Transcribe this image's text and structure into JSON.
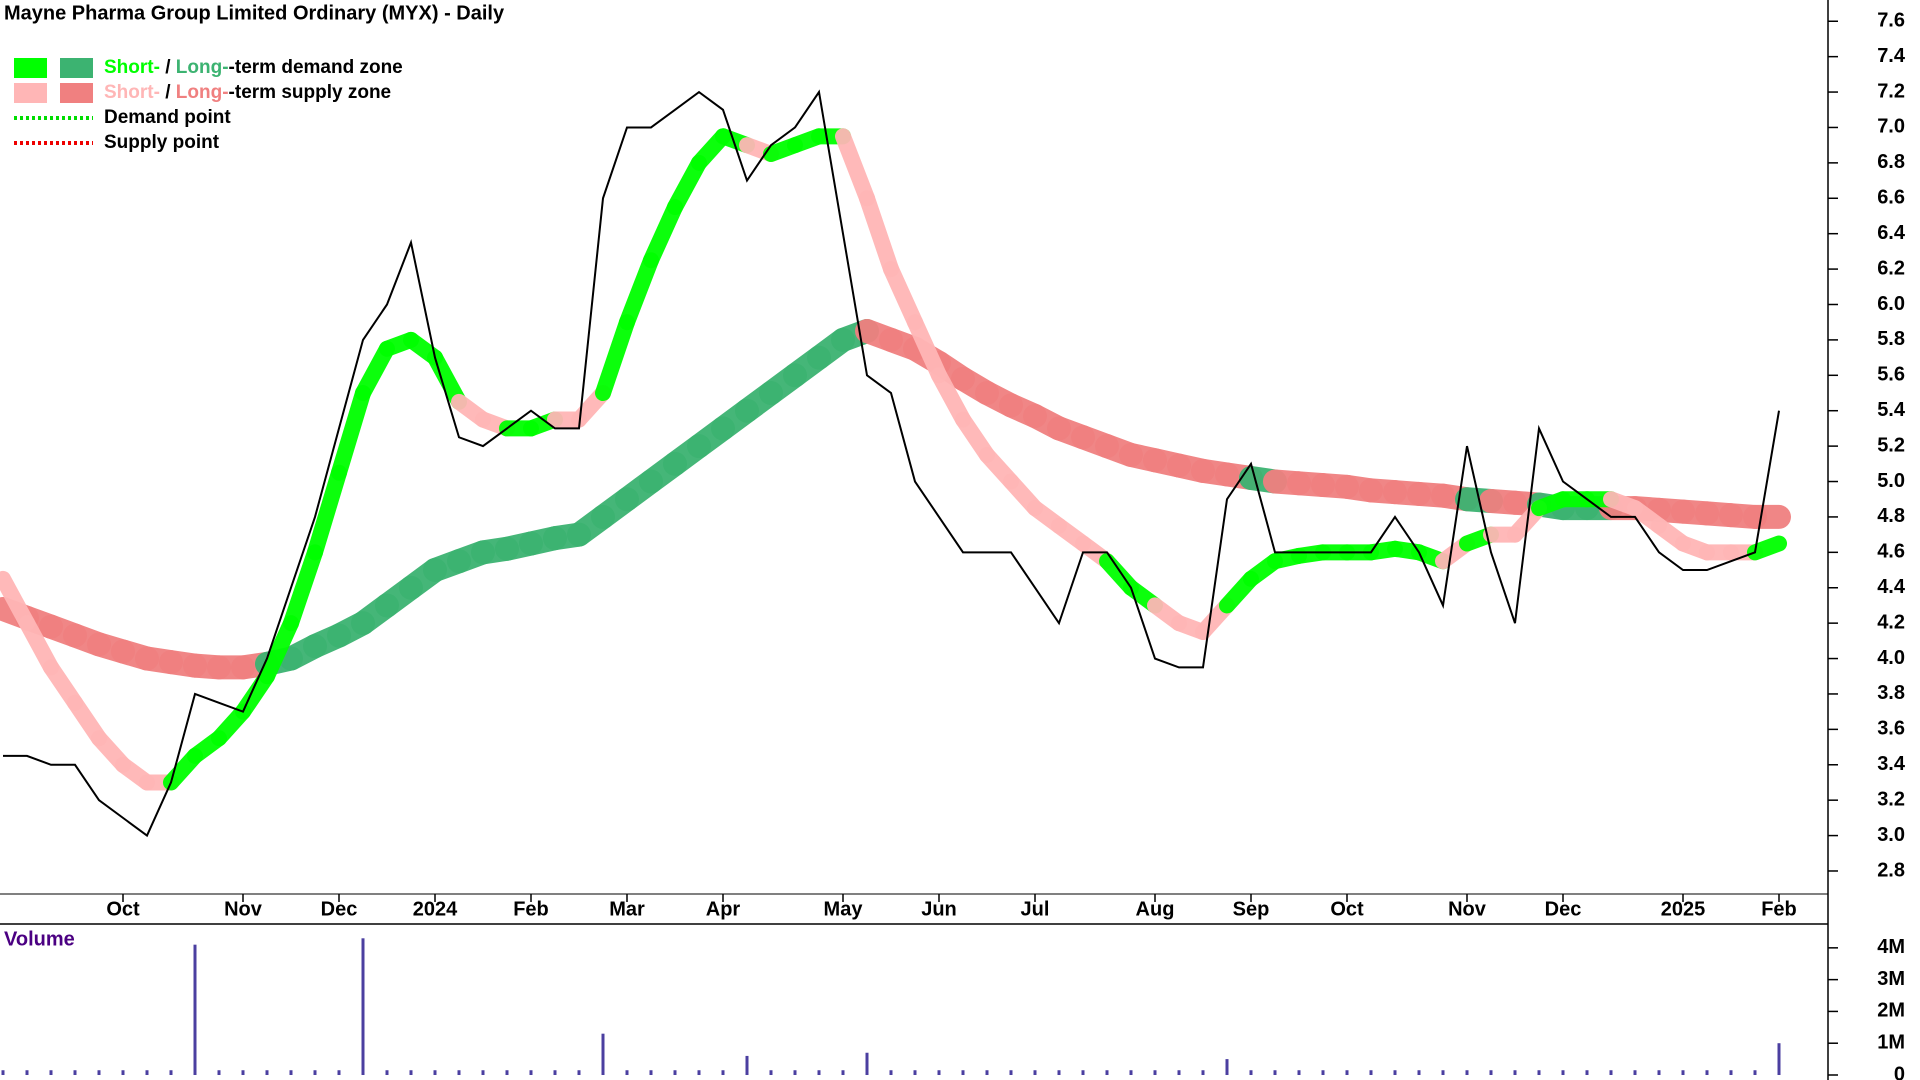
{
  "chart_data": [
    {
      "type": "line",
      "title": "Mayne Pharma Group Limited Ordinary (MYX) - Daily",
      "legend": {
        "corner": "top-left",
        "items": [
          {
            "short": "Short-",
            "sep": " / ",
            "long": "Long-",
            "rest": "-term demand zone",
            "short_color": "#00ff00",
            "long_color": "#3cb371"
          },
          {
            "short": "Short-",
            "sep": " / ",
            "long": "Long-",
            "rest": "-term supply zone",
            "short_color": "#ffb6b6",
            "long_color": "#f08080"
          },
          {
            "rest": "Demand point",
            "line_color": "#00dd00"
          },
          {
            "rest": "Supply point",
            "line_color": "#ee0000"
          }
        ]
      },
      "categories": [
        null,
        null,
        null,
        null,
        null,
        "Oct",
        null,
        null,
        null,
        null,
        "Nov",
        null,
        null,
        null,
        "Dec",
        null,
        null,
        null,
        "2024",
        null,
        null,
        null,
        "Feb",
        null,
        null,
        null,
        "Mar",
        null,
        null,
        null,
        "Apr",
        null,
        null,
        null,
        null,
        "May",
        null,
        null,
        null,
        "Jun",
        null,
        null,
        null,
        "Jul",
        null,
        null,
        null,
        null,
        "Aug",
        null,
        null,
        null,
        "Sep",
        null,
        null,
        null,
        "Oct",
        null,
        null,
        null,
        null,
        "Nov",
        null,
        null,
        null,
        "Dec",
        null,
        null,
        null,
        null,
        "2025",
        null,
        null,
        null,
        "Feb"
      ],
      "series": [
        {
          "role": "price",
          "color": "#000000",
          "values": [
            3.45,
            3.45,
            3.4,
            3.4,
            3.2,
            3.1,
            3.0,
            3.3,
            3.8,
            3.75,
            3.7,
            4.0,
            4.4,
            4.8,
            5.3,
            5.8,
            6.0,
            6.35,
            5.7,
            5.25,
            5.2,
            5.3,
            5.4,
            5.3,
            5.3,
            6.6,
            7.0,
            7.0,
            7.1,
            7.2,
            7.1,
            6.7,
            6.9,
            7.0,
            7.2,
            6.4,
            5.6,
            5.5,
            5.0,
            4.8,
            4.6,
            4.6,
            4.6,
            4.4,
            4.2,
            4.6,
            4.6,
            4.4,
            4.0,
            3.95,
            3.95,
            4.9,
            5.1,
            4.6,
            4.6,
            4.6,
            4.6,
            4.6,
            4.8,
            4.6,
            4.3,
            5.2,
            4.6,
            4.2,
            5.3,
            5.0,
            4.9,
            4.8,
            4.8,
            4.6,
            4.5,
            4.5,
            4.55,
            4.6,
            5.4
          ]
        },
        {
          "role": "short-zone",
          "demand_color": "#00ff00",
          "supply_color": "#ffb6b6",
          "values": [
            4.45,
            4.2,
            3.95,
            3.75,
            3.55,
            3.4,
            3.3,
            3.3,
            3.45,
            3.55,
            3.7,
            3.9,
            4.2,
            4.6,
            5.05,
            5.5,
            5.75,
            5.8,
            5.7,
            5.45,
            5.35,
            5.3,
            5.3,
            5.35,
            5.35,
            5.5,
            5.9,
            6.25,
            6.55,
            6.8,
            6.95,
            6.9,
            6.85,
            6.9,
            6.95,
            6.95,
            6.6,
            6.2,
            5.9,
            5.6,
            5.35,
            5.15,
            5.0,
            4.85,
            4.75,
            4.65,
            4.55,
            4.4,
            4.3,
            4.2,
            4.15,
            4.3,
            4.45,
            4.55,
            4.58,
            4.6,
            4.6,
            4.6,
            4.62,
            4.6,
            4.55,
            4.65,
            4.7,
            4.7,
            4.85,
            4.9,
            4.9,
            4.9,
            4.85,
            4.75,
            4.65,
            4.6,
            4.6,
            4.6,
            4.65
          ]
        },
        {
          "role": "long-zone",
          "demand_color": "#3cb371",
          "supply_color": "#f08080",
          "values": [
            4.28,
            4.23,
            4.18,
            4.13,
            4.08,
            4.04,
            4.0,
            3.98,
            3.96,
            3.95,
            3.95,
            3.97,
            4.0,
            4.07,
            4.13,
            4.2,
            4.3,
            4.4,
            4.5,
            4.55,
            4.6,
            4.62,
            4.65,
            4.68,
            4.7,
            4.8,
            4.9,
            5.0,
            5.1,
            5.2,
            5.3,
            5.4,
            5.5,
            5.6,
            5.7,
            5.8,
            5.85,
            5.8,
            5.75,
            5.67,
            5.58,
            5.5,
            5.43,
            5.37,
            5.3,
            5.25,
            5.2,
            5.15,
            5.12,
            5.09,
            5.06,
            5.04,
            5.02,
            5.0,
            4.99,
            4.98,
            4.97,
            4.95,
            4.94,
            4.93,
            4.92,
            4.9,
            4.89,
            4.88,
            4.87,
            4.85,
            4.85,
            4.85,
            4.85,
            4.84,
            4.83,
            4.82,
            4.81,
            4.8,
            4.8
          ]
        }
      ],
      "ylim": [
        2.67,
        7.72
      ],
      "yticks": [
        2.8,
        {
          "value": 3,
          "label": "3.0"
        },
        3.2,
        3.4,
        3.6,
        3.8,
        {
          "value": 4,
          "label": "4.0"
        },
        4.2,
        4.4,
        4.6,
        4.8,
        {
          "value": 5,
          "label": "5.0"
        },
        5.2,
        5.4,
        5.6,
        5.8,
        {
          "value": 6,
          "label": "6.0"
        },
        6.2,
        6.4,
        6.6,
        6.8,
        {
          "value": 7,
          "label": "7.0"
        },
        7.2,
        7.4,
        7.6
      ]
    },
    {
      "type": "bar",
      "title": "Volume",
      "color": "#4b3fa0",
      "values": [
        150000,
        150000,
        150000,
        150000,
        150000,
        150000,
        150000,
        150000,
        4100000,
        150000,
        150000,
        150000,
        150000,
        150000,
        150000,
        4300000,
        150000,
        150000,
        150000,
        150000,
        150000,
        150000,
        150000,
        150000,
        150000,
        1300000,
        150000,
        150000,
        150000,
        150000,
        150000,
        600000,
        150000,
        150000,
        150000,
        150000,
        700000,
        150000,
        150000,
        150000,
        150000,
        150000,
        150000,
        150000,
        150000,
        150000,
        150000,
        150000,
        150000,
        150000,
        150000,
        500000,
        150000,
        150000,
        150000,
        150000,
        150000,
        150000,
        150000,
        150000,
        150000,
        150000,
        150000,
        150000,
        150000,
        150000,
        150000,
        150000,
        150000,
        150000,
        150000,
        150000,
        150000,
        150000,
        1000000
      ],
      "ylim": [
        0,
        4750000
      ],
      "yticks": [
        0,
        {
          "value": 1000000,
          "label": "1M"
        },
        {
          "value": 2000000,
          "label": "2M"
        },
        {
          "value": 3000000,
          "label": "3M"
        },
        {
          "value": 4000000,
          "label": "4M"
        }
      ]
    }
  ]
}
